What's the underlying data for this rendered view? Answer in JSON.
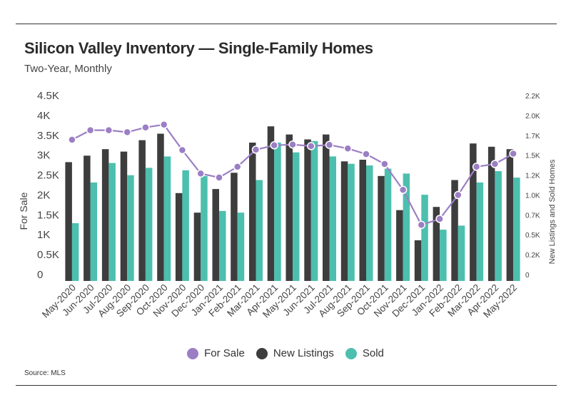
{
  "title": "Silicon Valley Inventory — Single-Family Homes",
  "subtitle": "Two-Year, Monthly",
  "source": "Source:  MLS",
  "colors": {
    "for_sale": "#9b7fc4",
    "new_listings": "#3d3d3d",
    "sold": "#4dbfae"
  },
  "chart_data": {
    "type": "bar",
    "categories": [
      "May-2020",
      "Jun-2020",
      "Jul-2020",
      "Aug-2020",
      "Sep-2020",
      "Oct-2020",
      "Nov-2020",
      "Dec-2020",
      "Jan-2021",
      "Feb-2021",
      "Mar-2021",
      "Apr-2021",
      "May-2021",
      "Jun-2021",
      "Jul-2021",
      "Aug-2021",
      "Sep-2021",
      "Oct-2021",
      "Nov-2021",
      "Dec-2021",
      "Jan-2022",
      "Feb-2022",
      "Mar-2022",
      "Apr-2022",
      "May-2022"
    ],
    "ylabel": "For Sale",
    "y2label": "New Listings and Sold Homes",
    "ylim": [
      0,
      4500
    ],
    "y2lim": [
      0,
      2200
    ],
    "yticks": [
      "0",
      "0.5K",
      "1K",
      "1.5K",
      "2K",
      "2.5K",
      "3K",
      "3.5K",
      "4K",
      "4.5K"
    ],
    "y2ticks": [
      "0",
      "0.2K",
      "0.5K",
      "0.7K",
      "1.0K",
      "1.2K",
      "1.5K",
      "1.7K",
      "2.0K",
      "2.2K"
    ],
    "series": [
      {
        "name": "For Sale",
        "type": "line",
        "axis": "left",
        "values": [
          3550,
          3790,
          3790,
          3740,
          3860,
          3930,
          3290,
          2700,
          2600,
          2870,
          3300,
          3410,
          3430,
          3390,
          3420,
          3330,
          3190,
          2940,
          2290,
          1410,
          1560,
          2160,
          2870,
          2940,
          3200
        ]
      },
      {
        "name": "New Listings",
        "type": "bar",
        "axis": "right",
        "values": [
          1460,
          1540,
          1620,
          1590,
          1730,
          1810,
          1080,
          840,
          1130,
          1330,
          1700,
          1900,
          1800,
          1740,
          1800,
          1470,
          1490,
          1290,
          870,
          500,
          910,
          1240,
          1690,
          1650,
          1620
        ]
      },
      {
        "name": "Sold",
        "type": "bar",
        "axis": "right",
        "values": [
          710,
          1210,
          1450,
          1300,
          1390,
          1530,
          1360,
          1290,
          860,
          840,
          1240,
          1700,
          1580,
          1720,
          1530,
          1440,
          1420,
          1380,
          1320,
          1060,
          630,
          680,
          1210,
          1350,
          1270
        ]
      }
    ],
    "legend": {
      "position": "bottom",
      "items": [
        "For Sale",
        "New Listings",
        "Sold"
      ]
    },
    "grid": false
  }
}
